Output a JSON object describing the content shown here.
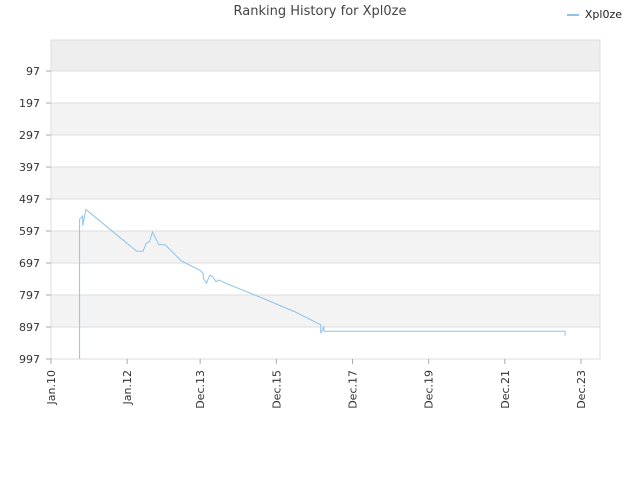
{
  "chart_data": {
    "type": "line",
    "title": "Ranking History for Xpl0ze",
    "xlabel": "",
    "ylabel": "",
    "ylim_inverted": [
      997,
      0
    ],
    "yticks": [
      97,
      197,
      297,
      397,
      497,
      597,
      697,
      797,
      897,
      997
    ],
    "xticks": [
      "Jan.10",
      "Jan.12",
      "Dec.13",
      "Dec.15",
      "Dec.17",
      "Dec.19",
      "Dec.21",
      "Dec.23"
    ],
    "xlim": [
      "2010-01",
      "2024-06"
    ],
    "legend_position": "top-right",
    "grid": true,
    "series": [
      {
        "name": "Xpl0ze",
        "color": "#8ec3ea",
        "points": [
          [
            "2010-10",
            997
          ],
          [
            "2010-10",
            560
          ],
          [
            "2010-11",
            550
          ],
          [
            "2010-11",
            580
          ],
          [
            "2010-12",
            530
          ],
          [
            "2012-04",
            660
          ],
          [
            "2012-06",
            660
          ],
          [
            "2012-07",
            635
          ],
          [
            "2012-08",
            630
          ],
          [
            "2012-09",
            600
          ],
          [
            "2012-10",
            620
          ],
          [
            "2012-11",
            640
          ],
          [
            "2012-12",
            640
          ],
          [
            "2013-01",
            640
          ],
          [
            "2013-02",
            650
          ],
          [
            "2013-04",
            670
          ],
          [
            "2013-06",
            690
          ],
          [
            "2013-08",
            700
          ],
          [
            "2013-10",
            710
          ],
          [
            "2013-11",
            715
          ],
          [
            "2013-12",
            720
          ],
          [
            "2014-01",
            730
          ],
          [
            "2014-01",
            745
          ],
          [
            "2014-02",
            760
          ],
          [
            "2014-03",
            735
          ],
          [
            "2014-04",
            740
          ],
          [
            "2014-05",
            755
          ],
          [
            "2014-06",
            750
          ],
          [
            "2014-08",
            760
          ],
          [
            "2015-06",
            800
          ],
          [
            "2016-06",
            850
          ],
          [
            "2017-02",
            890
          ],
          [
            "2017-02",
            917
          ],
          [
            "2017-03",
            895
          ],
          [
            "2017-03",
            910
          ],
          [
            "2018-01",
            910
          ],
          [
            "2020-01",
            910
          ],
          [
            "2022-01",
            910
          ],
          [
            "2023-07",
            910
          ],
          [
            "2023-07",
            925
          ]
        ]
      }
    ]
  }
}
